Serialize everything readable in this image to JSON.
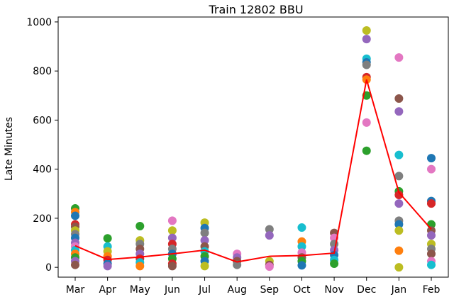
{
  "chart_data": {
    "type": "scatter",
    "title": "Train 12802 BBU",
    "xlabel": "",
    "ylabel": "Late Minutes",
    "categories": [
      "Mar",
      "Apr",
      "May",
      "Jun",
      "Jul",
      "Aug",
      "Sep",
      "Oct",
      "Nov",
      "Dec",
      "Jan",
      "Feb"
    ],
    "ylim": [
      -40,
      1020
    ],
    "yticks": [
      0,
      200,
      400,
      600,
      800,
      1000
    ],
    "grid": false,
    "points": [
      {
        "x": "Mar",
        "y": 240,
        "color": "#2ca02c"
      },
      {
        "x": "Mar",
        "y": 225,
        "color": "#ff7f0e"
      },
      {
        "x": "Mar",
        "y": 210,
        "color": "#1f77b4"
      },
      {
        "x": "Mar",
        "y": 175,
        "color": "#d62728"
      },
      {
        "x": "Mar",
        "y": 165,
        "color": "#8c564b"
      },
      {
        "x": "Mar",
        "y": 150,
        "color": "#bcbd22"
      },
      {
        "x": "Mar",
        "y": 135,
        "color": "#7f7f7f"
      },
      {
        "x": "Mar",
        "y": 120,
        "color": "#1f77b4"
      },
      {
        "x": "Mar",
        "y": 100,
        "color": "#9467bd"
      },
      {
        "x": "Mar",
        "y": 85,
        "color": "#e377c2"
      },
      {
        "x": "Mar",
        "y": 70,
        "color": "#17becf"
      },
      {
        "x": "Mar",
        "y": 55,
        "color": "#ff7f0e"
      },
      {
        "x": "Mar",
        "y": 40,
        "color": "#2ca02c"
      },
      {
        "x": "Mar",
        "y": 25,
        "color": "#9467bd"
      },
      {
        "x": "Mar",
        "y": 10,
        "color": "#8c564b"
      },
      {
        "x": "Apr",
        "y": 118,
        "color": "#2ca02c"
      },
      {
        "x": "Apr",
        "y": 85,
        "color": "#17becf"
      },
      {
        "x": "Apr",
        "y": 65,
        "color": "#bcbd22"
      },
      {
        "x": "Apr",
        "y": 45,
        "color": "#ff7f0e"
      },
      {
        "x": "Apr",
        "y": 30,
        "color": "#d62728"
      },
      {
        "x": "Apr",
        "y": 15,
        "color": "#1f77b4"
      },
      {
        "x": "Apr",
        "y": 5,
        "color": "#9467bd"
      },
      {
        "x": "May",
        "y": 168,
        "color": "#2ca02c"
      },
      {
        "x": "May",
        "y": 110,
        "color": "#bcbd22"
      },
      {
        "x": "May",
        "y": 95,
        "color": "#7f7f7f"
      },
      {
        "x": "May",
        "y": 75,
        "color": "#8c564b"
      },
      {
        "x": "May",
        "y": 55,
        "color": "#9467bd"
      },
      {
        "x": "May",
        "y": 35,
        "color": "#d62728"
      },
      {
        "x": "May",
        "y": 20,
        "color": "#17becf"
      },
      {
        "x": "May",
        "y": 5,
        "color": "#ff7f0e"
      },
      {
        "x": "Jun",
        "y": 190,
        "color": "#e377c2"
      },
      {
        "x": "Jun",
        "y": 150,
        "color": "#bcbd22"
      },
      {
        "x": "Jun",
        "y": 120,
        "color": "#9467bd"
      },
      {
        "x": "Jun",
        "y": 95,
        "color": "#d62728"
      },
      {
        "x": "Jun",
        "y": 75,
        "color": "#7f7f7f"
      },
      {
        "x": "Jun",
        "y": 55,
        "color": "#1f77b4"
      },
      {
        "x": "Jun",
        "y": 35,
        "color": "#2ca02c"
      },
      {
        "x": "Jun",
        "y": 15,
        "color": "#d62728"
      },
      {
        "x": "Jun",
        "y": 5,
        "color": "#8c564b"
      },
      {
        "x": "Jul",
        "y": 182,
        "color": "#bcbd22"
      },
      {
        "x": "Jul",
        "y": 160,
        "color": "#1f77b4"
      },
      {
        "x": "Jul",
        "y": 140,
        "color": "#7f7f7f"
      },
      {
        "x": "Jul",
        "y": 110,
        "color": "#9467bd"
      },
      {
        "x": "Jul",
        "y": 85,
        "color": "#8c564b"
      },
      {
        "x": "Jul",
        "y": 65,
        "color": "#17becf"
      },
      {
        "x": "Jul",
        "y": 45,
        "color": "#2ca02c"
      },
      {
        "x": "Jul",
        "y": 25,
        "color": "#1f77b4"
      },
      {
        "x": "Jul",
        "y": 5,
        "color": "#bcbd22"
      },
      {
        "x": "Aug",
        "y": 55,
        "color": "#e377c2"
      },
      {
        "x": "Aug",
        "y": 40,
        "color": "#9467bd"
      },
      {
        "x": "Aug",
        "y": 25,
        "color": "#8c564b"
      },
      {
        "x": "Aug",
        "y": 10,
        "color": "#7f7f7f"
      },
      {
        "x": "Sep",
        "y": 155,
        "color": "#7f7f7f"
      },
      {
        "x": "Sep",
        "y": 130,
        "color": "#9467bd"
      },
      {
        "x": "Sep",
        "y": 25,
        "color": "#bcbd22"
      },
      {
        "x": "Sep",
        "y": 10,
        "color": "#8c564b"
      },
      {
        "x": "Sep",
        "y": 3,
        "color": "#e377c2"
      },
      {
        "x": "Oct",
        "y": 162,
        "color": "#17becf"
      },
      {
        "x": "Oct",
        "y": 105,
        "color": "#ff7f0e"
      },
      {
        "x": "Oct",
        "y": 85,
        "color": "#17becf"
      },
      {
        "x": "Oct",
        "y": 60,
        "color": "#e377c2"
      },
      {
        "x": "Oct",
        "y": 40,
        "color": "#8c564b"
      },
      {
        "x": "Oct",
        "y": 25,
        "color": "#2ca02c"
      },
      {
        "x": "Oct",
        "y": 8,
        "color": "#1f77b4"
      },
      {
        "x": "Nov",
        "y": 140,
        "color": "#8c564b"
      },
      {
        "x": "Nov",
        "y": 120,
        "color": "#e377c2"
      },
      {
        "x": "Nov",
        "y": 95,
        "color": "#7f7f7f"
      },
      {
        "x": "Nov",
        "y": 70,
        "color": "#9467bd"
      },
      {
        "x": "Nov",
        "y": 50,
        "color": "#1f77b4"
      },
      {
        "x": "Nov",
        "y": 30,
        "color": "#17becf"
      },
      {
        "x": "Nov",
        "y": 15,
        "color": "#2ca02c"
      },
      {
        "x": "Dec",
        "y": 965,
        "color": "#bcbd22"
      },
      {
        "x": "Dec",
        "y": 930,
        "color": "#9467bd"
      },
      {
        "x": "Dec",
        "y": 850,
        "color": "#17becf"
      },
      {
        "x": "Dec",
        "y": 835,
        "color": "#1f77b4"
      },
      {
        "x": "Dec",
        "y": 825,
        "color": "#7f7f7f"
      },
      {
        "x": "Dec",
        "y": 775,
        "color": "#d62728"
      },
      {
        "x": "Dec",
        "y": 765,
        "color": "#ff7f0e"
      },
      {
        "x": "Dec",
        "y": 700,
        "color": "#2ca02c"
      },
      {
        "x": "Dec",
        "y": 590,
        "color": "#e377c2"
      },
      {
        "x": "Dec",
        "y": 475,
        "color": "#2ca02c"
      },
      {
        "x": "Jan",
        "y": 855,
        "color": "#e377c2"
      },
      {
        "x": "Jan",
        "y": 688,
        "color": "#8c564b"
      },
      {
        "x": "Jan",
        "y": 635,
        "color": "#9467bd"
      },
      {
        "x": "Jan",
        "y": 458,
        "color": "#17becf"
      },
      {
        "x": "Jan",
        "y": 372,
        "color": "#7f7f7f"
      },
      {
        "x": "Jan",
        "y": 310,
        "color": "#2ca02c"
      },
      {
        "x": "Jan",
        "y": 295,
        "color": "#d62728"
      },
      {
        "x": "Jan",
        "y": 260,
        "color": "#9467bd"
      },
      {
        "x": "Jan",
        "y": 190,
        "color": "#7f7f7f"
      },
      {
        "x": "Jan",
        "y": 175,
        "color": "#1f77b4"
      },
      {
        "x": "Jan",
        "y": 150,
        "color": "#bcbd22"
      },
      {
        "x": "Jan",
        "y": 68,
        "color": "#ff7f0e"
      },
      {
        "x": "Jan",
        "y": 0,
        "color": "#bcbd22"
      },
      {
        "x": "Feb",
        "y": 445,
        "color": "#1f77b4"
      },
      {
        "x": "Feb",
        "y": 400,
        "color": "#e377c2"
      },
      {
        "x": "Feb",
        "y": 270,
        "color": "#1f77b4"
      },
      {
        "x": "Feb",
        "y": 260,
        "color": "#d62728"
      },
      {
        "x": "Feb",
        "y": 175,
        "color": "#2ca02c"
      },
      {
        "x": "Feb",
        "y": 150,
        "color": "#8c564b"
      },
      {
        "x": "Feb",
        "y": 130,
        "color": "#9467bd"
      },
      {
        "x": "Feb",
        "y": 95,
        "color": "#bcbd22"
      },
      {
        "x": "Feb",
        "y": 75,
        "color": "#7f7f7f"
      },
      {
        "x": "Feb",
        "y": 55,
        "color": "#8c564b"
      },
      {
        "x": "Feb",
        "y": 25,
        "color": "#e377c2"
      },
      {
        "x": "Feb",
        "y": 10,
        "color": "#17becf"
      }
    ],
    "series": [
      {
        "values": [
          88,
          32,
          42,
          55,
          70,
          22,
          45,
          48,
          58,
          765,
          305,
          155
        ],
        "color": "#ff0000"
      }
    ]
  }
}
